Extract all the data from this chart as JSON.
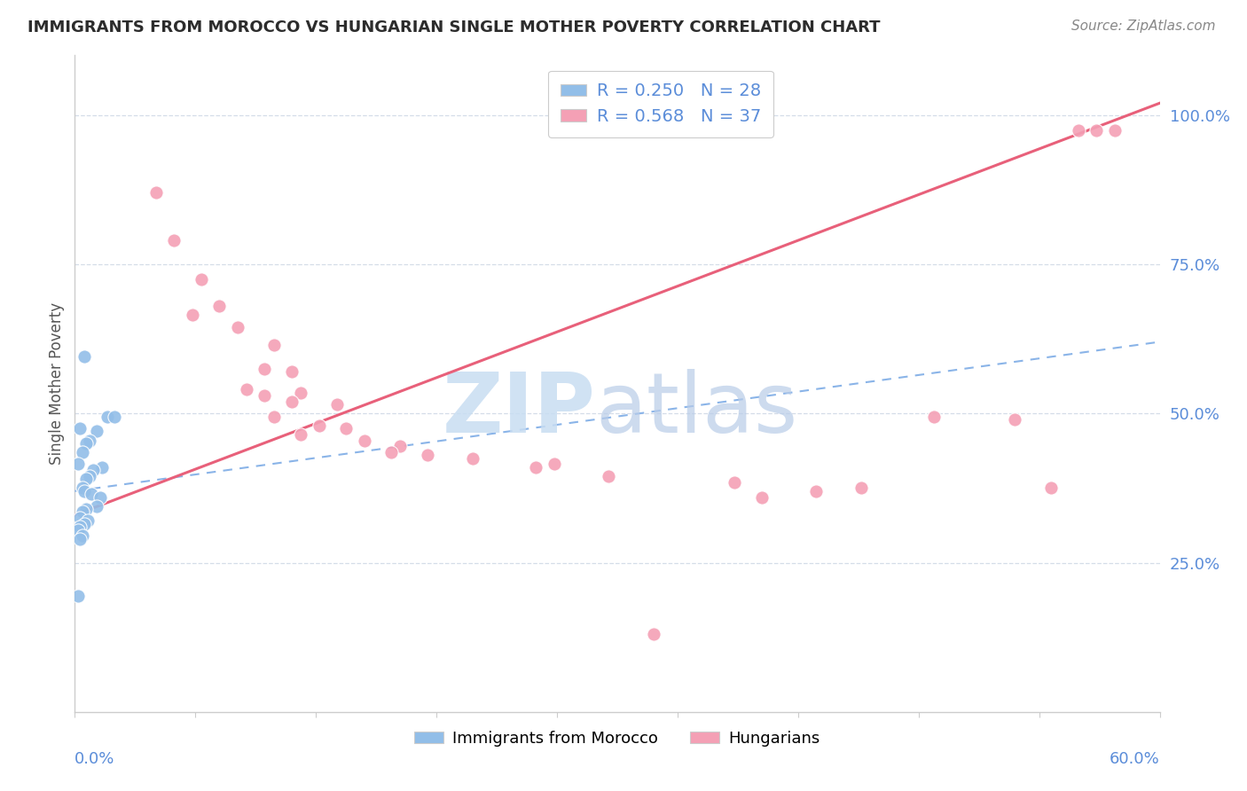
{
  "title": "IMMIGRANTS FROM MOROCCO VS HUNGARIAN SINGLE MOTHER POVERTY CORRELATION CHART",
  "source": "Source: ZipAtlas.com",
  "ylabel": "Single Mother Poverty",
  "y_tick_labels": [
    "25.0%",
    "50.0%",
    "75.0%",
    "100.0%"
  ],
  "y_tick_values": [
    0.25,
    0.5,
    0.75,
    1.0
  ],
  "x_lim": [
    0.0,
    0.6
  ],
  "y_lim": [
    0.0,
    1.1
  ],
  "blue_scatter": [
    [
      0.005,
      0.595
    ],
    [
      0.003,
      0.475
    ],
    [
      0.018,
      0.495
    ],
    [
      0.022,
      0.495
    ],
    [
      0.012,
      0.47
    ],
    [
      0.008,
      0.455
    ],
    [
      0.006,
      0.45
    ],
    [
      0.004,
      0.435
    ],
    [
      0.002,
      0.415
    ],
    [
      0.015,
      0.41
    ],
    [
      0.01,
      0.405
    ],
    [
      0.008,
      0.395
    ],
    [
      0.006,
      0.39
    ],
    [
      0.004,
      0.375
    ],
    [
      0.005,
      0.37
    ],
    [
      0.009,
      0.365
    ],
    [
      0.014,
      0.36
    ],
    [
      0.012,
      0.345
    ],
    [
      0.006,
      0.34
    ],
    [
      0.004,
      0.335
    ],
    [
      0.003,
      0.325
    ],
    [
      0.007,
      0.32
    ],
    [
      0.005,
      0.315
    ],
    [
      0.003,
      0.31
    ],
    [
      0.002,
      0.305
    ],
    [
      0.004,
      0.295
    ],
    [
      0.003,
      0.29
    ],
    [
      0.002,
      0.195
    ]
  ],
  "pink_scatter": [
    [
      0.045,
      0.87
    ],
    [
      0.055,
      0.79
    ],
    [
      0.07,
      0.725
    ],
    [
      0.08,
      0.68
    ],
    [
      0.065,
      0.665
    ],
    [
      0.09,
      0.645
    ],
    [
      0.11,
      0.615
    ],
    [
      0.105,
      0.575
    ],
    [
      0.12,
      0.57
    ],
    [
      0.095,
      0.54
    ],
    [
      0.125,
      0.535
    ],
    [
      0.105,
      0.53
    ],
    [
      0.12,
      0.52
    ],
    [
      0.145,
      0.515
    ],
    [
      0.11,
      0.495
    ],
    [
      0.135,
      0.48
    ],
    [
      0.15,
      0.475
    ],
    [
      0.125,
      0.465
    ],
    [
      0.16,
      0.455
    ],
    [
      0.18,
      0.445
    ],
    [
      0.175,
      0.435
    ],
    [
      0.195,
      0.43
    ],
    [
      0.22,
      0.425
    ],
    [
      0.265,
      0.415
    ],
    [
      0.255,
      0.41
    ],
    [
      0.295,
      0.395
    ],
    [
      0.365,
      0.385
    ],
    [
      0.475,
      0.495
    ],
    [
      0.52,
      0.49
    ],
    [
      0.555,
      0.975
    ],
    [
      0.565,
      0.975
    ],
    [
      0.575,
      0.975
    ],
    [
      0.41,
      0.37
    ],
    [
      0.435,
      0.375
    ],
    [
      0.38,
      0.36
    ],
    [
      0.54,
      0.375
    ],
    [
      0.32,
      0.13
    ]
  ],
  "blue_line_x": [
    0.0,
    0.6
  ],
  "blue_line_y": [
    0.37,
    0.62
  ],
  "pink_line_x": [
    0.0,
    0.6
  ],
  "pink_line_y": [
    0.33,
    1.02
  ],
  "blue_color": "#92bee8",
  "pink_color": "#f4a0b5",
  "blue_line_color": "#8ab4e8",
  "pink_line_color": "#e8607a",
  "title_color": "#2c2c2c",
  "axis_label_color": "#5b8dd9",
  "ylabel_color": "#555555",
  "grid_color": "#d5dde8",
  "background_color": "#ffffff",
  "legend_label_blue": "R = 0.250   N = 28",
  "legend_label_pink": "R = 0.568   N = 37",
  "bottom_legend_blue": "Immigrants from Morocco",
  "bottom_legend_pink": "Hungarians",
  "watermark_zip_color": "#c8ddf2",
  "watermark_atlas_color": "#b8cce8"
}
